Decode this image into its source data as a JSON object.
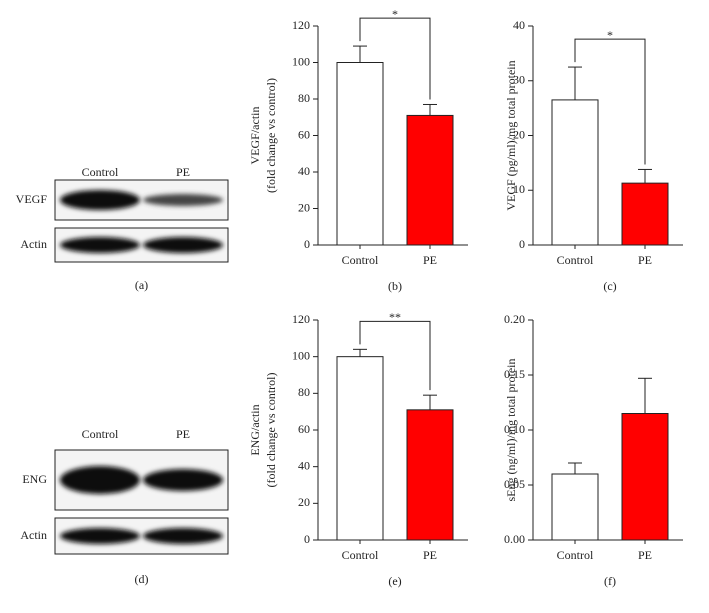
{
  "blots": [
    {
      "lanes": [
        "Control",
        "PE"
      ],
      "rows": [
        "VEGF",
        "Actin"
      ],
      "caption": "(a)"
    },
    {
      "lanes": [
        "Control",
        "PE"
      ],
      "rows": [
        "ENG",
        "Actin"
      ],
      "caption": "(d)"
    }
  ],
  "chart_data": [
    {
      "type": "bar",
      "categories": [
        "Control",
        "PE"
      ],
      "values": [
        100,
        71
      ],
      "errors": [
        9,
        6
      ],
      "colors": [
        "#ffffff",
        "#ff0000"
      ],
      "ylim": [
        0,
        120
      ],
      "yticks": [
        0,
        20,
        40,
        60,
        80,
        100,
        120
      ],
      "ylabel": [
        "VEGF/actin",
        "(fold change vs control)"
      ],
      "annotation": "*",
      "caption": "(b)"
    },
    {
      "type": "bar",
      "categories": [
        "Control",
        "PE"
      ],
      "values": [
        26.5,
        11.3
      ],
      "errors": [
        6,
        2.5
      ],
      "colors": [
        "#ffffff",
        "#ff0000"
      ],
      "ylim": [
        0,
        40
      ],
      "yticks": [
        0,
        10,
        20,
        30,
        40
      ],
      "ylabel": [
        "VEGF (pg/ml)/mg total protein"
      ],
      "annotation": "*",
      "caption": "(c)"
    },
    {
      "type": "bar",
      "categories": [
        "Control",
        "PE"
      ],
      "values": [
        100,
        71
      ],
      "errors": [
        4,
        8
      ],
      "colors": [
        "#ffffff",
        "#ff0000"
      ],
      "ylim": [
        0,
        120
      ],
      "yticks": [
        0,
        20,
        40,
        60,
        80,
        100,
        120
      ],
      "ylabel": [
        "ENG/actin",
        "(fold change vs control)"
      ],
      "annotation": "**",
      "caption": "(e)"
    },
    {
      "type": "bar",
      "categories": [
        "Control",
        "PE"
      ],
      "values": [
        0.06,
        0.115
      ],
      "errors": [
        0.01,
        0.032
      ],
      "colors": [
        "#ffffff",
        "#ff0000"
      ],
      "ylim": [
        0,
        0.2
      ],
      "yticks": [
        {
          "value": 0,
          "label": "0.00"
        },
        {
          "value": 0.05,
          "label": "0.05"
        },
        {
          "value": 0.1,
          "label": "0.10"
        },
        {
          "value": 0.15,
          "label": "0.15"
        },
        {
          "value": 0.2,
          "label": "0.20"
        }
      ],
      "ylabel": [
        "sEng (ng/ml)/mg total protein"
      ],
      "caption": "(f)"
    }
  ]
}
